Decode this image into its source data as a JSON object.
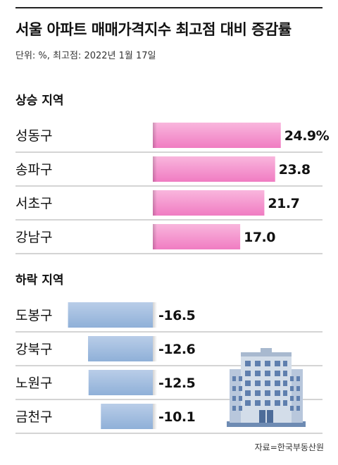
{
  "title": "서울 아파트 매매가격지수 최고점 대비 증감률",
  "subtitle": "단위: %, 최고점: 2022년 1월 17일",
  "source": "자료=한국부동산원",
  "colors": {
    "up": "#f38cc9",
    "down": "#9db8dc",
    "divider": "#aaaaaa"
  },
  "chart_data": {
    "type": "bar",
    "orientation": "horizontal",
    "groups": [
      {
        "name": "상승 지역",
        "categories": [
          "성동구",
          "송파구",
          "서초구",
          "강남구"
        ],
        "values": [
          24.9,
          23.8,
          21.7,
          17.0
        ],
        "labels": [
          "24.9%",
          "23.8",
          "21.7",
          "17.0"
        ]
      },
      {
        "name": "하락 지역",
        "categories": [
          "도봉구",
          "강북구",
          "노원구",
          "금천구"
        ],
        "values": [
          -16.5,
          -12.6,
          -12.5,
          -10.1
        ],
        "labels": [
          "-16.5",
          "-12.6",
          "-12.5",
          "-10.1"
        ]
      }
    ]
  }
}
